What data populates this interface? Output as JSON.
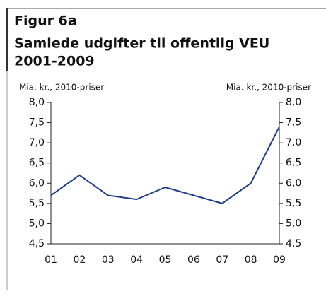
{
  "chart_data": {
    "type": "line",
    "title": "Figur 6a",
    "subtitle": [
      "Samlede udgifter til offentlig VEU",
      "2001-2009"
    ],
    "ylabel": "Mia. kr., 2010-priser",
    "y2label": "Mia. kr., 2010-priser",
    "categories": [
      "01",
      "02",
      "03",
      "04",
      "05",
      "06",
      "07",
      "08",
      "09"
    ],
    "series": [
      {
        "name": "Samlede udgifter",
        "color": "#1f3d8a",
        "values": [
          5.7,
          6.2,
          5.7,
          5.6,
          5.9,
          5.7,
          5.5,
          6.0,
          7.4
        ]
      }
    ],
    "ylim": [
      4.5,
      8.0
    ],
    "yticks": [
      {
        "value": 4.5,
        "label": "4,5"
      },
      {
        "value": 5.0,
        "label": "5,0"
      },
      {
        "value": 5.5,
        "label": "5,5"
      },
      {
        "value": 6.0,
        "label": "6,0"
      },
      {
        "value": 6.5,
        "label": "6,5"
      },
      {
        "value": 7.0,
        "label": "7,0"
      },
      {
        "value": 7.5,
        "label": "7,5"
      },
      {
        "value": 8.0,
        "label": "8,0"
      }
    ],
    "y2lim": [
      4.5,
      8.0
    ],
    "y2ticks": [
      {
        "value": 4.5,
        "label": "4,5"
      },
      {
        "value": 5.0,
        "label": "5,0"
      },
      {
        "value": 5.5,
        "label": "5,5"
      },
      {
        "value": 6.0,
        "label": "6,0"
      },
      {
        "value": 6.5,
        "label": "6,5"
      },
      {
        "value": 7.0,
        "label": "7,0"
      },
      {
        "value": 7.5,
        "label": "7,5"
      },
      {
        "value": 8.0,
        "label": "8,0"
      }
    ],
    "grid": false
  }
}
